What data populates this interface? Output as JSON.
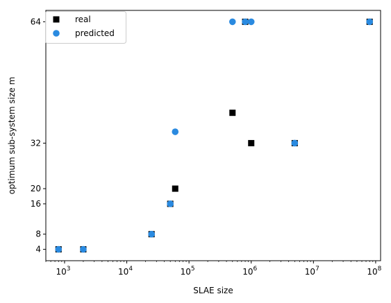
{
  "chart_data": {
    "type": "scatter",
    "xlabel": "SLAE size",
    "ylabel": "optimum sub-system size m",
    "xscale": "log",
    "xlim": [
      500,
      120000000
    ],
    "ylim": [
      1,
      67
    ],
    "x_ticks": [
      {
        "value": 1000,
        "base": "10",
        "exp": "3"
      },
      {
        "value": 10000,
        "base": "10",
        "exp": "4"
      },
      {
        "value": 100000,
        "base": "10",
        "exp": "5"
      },
      {
        "value": 1000000,
        "base": "10",
        "exp": "6"
      },
      {
        "value": 10000000,
        "base": "10",
        "exp": "7"
      },
      {
        "value": 100000000,
        "base": "10",
        "exp": "8"
      }
    ],
    "y_ticks": [
      {
        "value": 4,
        "label": "4"
      },
      {
        "value": 8,
        "label": "8"
      },
      {
        "value": 16,
        "label": "16"
      },
      {
        "value": 20,
        "label": "20"
      },
      {
        "value": 32,
        "label": "32"
      },
      {
        "value": 64,
        "label": "64"
      }
    ],
    "legend": {
      "placement": "top-left"
    },
    "series": [
      {
        "name": "real",
        "marker": "square",
        "color": "#000000",
        "points": [
          {
            "x": 800,
            "y": 4
          },
          {
            "x": 2000,
            "y": 4
          },
          {
            "x": 25000,
            "y": 8
          },
          {
            "x": 50000,
            "y": 16
          },
          {
            "x": 60000,
            "y": 20
          },
          {
            "x": 500000,
            "y": 40
          },
          {
            "x": 800000,
            "y": 64
          },
          {
            "x": 1000000,
            "y": 32
          },
          {
            "x": 5000000,
            "y": 32
          },
          {
            "x": 80000000,
            "y": 64
          }
        ]
      },
      {
        "name": "predicted",
        "marker": "circle",
        "color": "#2a8ae0",
        "points": [
          {
            "x": 800,
            "y": 4
          },
          {
            "x": 2000,
            "y": 4
          },
          {
            "x": 25000,
            "y": 8
          },
          {
            "x": 50000,
            "y": 16
          },
          {
            "x": 60000,
            "y": 35
          },
          {
            "x": 500000,
            "y": 64
          },
          {
            "x": 800000,
            "y": 64
          },
          {
            "x": 1000000,
            "y": 64
          },
          {
            "x": 5000000,
            "y": 32
          },
          {
            "x": 80000000,
            "y": 64
          }
        ]
      }
    ]
  }
}
